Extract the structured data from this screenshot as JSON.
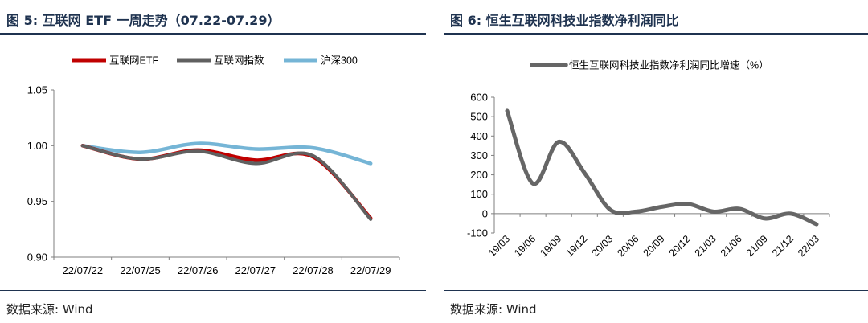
{
  "panels": [
    {
      "title": "图 5:  互联网 ETF 一周走势（07.22-07.29）",
      "source": "数据来源:  Wind"
    },
    {
      "title": "图 6:  恒生互联网科技业指数净利润同比",
      "source": "数据来源:  Wind"
    }
  ],
  "chart_data": [
    {
      "type": "line",
      "title": "",
      "xlabel": "",
      "ylabel": "",
      "categories": [
        "22/07/22",
        "22/07/25",
        "22/07/26",
        "22/07/27",
        "22/07/28",
        "22/07/29"
      ],
      "ylim": [
        0.9,
        1.05
      ],
      "yticks": [
        0.9,
        0.95,
        1.0,
        1.05
      ],
      "ytick_labels": [
        "0.90",
        "0.95",
        "1.00",
        "1.05"
      ],
      "grid": false,
      "legend_position": "top",
      "series": [
        {
          "name": "互联网ETF",
          "color": "#c00000",
          "values": [
            1.0,
            0.988,
            0.996,
            0.987,
            0.99,
            0.935
          ]
        },
        {
          "name": "互联网指数",
          "color": "#606060",
          "values": [
            1.0,
            0.988,
            0.995,
            0.984,
            0.991,
            0.934
          ]
        },
        {
          "name": "沪深300",
          "color": "#75b5d6",
          "values": [
            1.0,
            0.994,
            1.002,
            0.997,
            0.998,
            0.984
          ]
        }
      ]
    },
    {
      "type": "line",
      "title": "",
      "xlabel": "",
      "ylabel": "",
      "categories": [
        "19/03",
        "19/06",
        "19/09",
        "19/12",
        "20/03",
        "20/06",
        "20/09",
        "20/12",
        "21/03",
        "21/06",
        "21/09",
        "21/12",
        "22/03"
      ],
      "ylim": [
        -100,
        600
      ],
      "yticks": [
        -100,
        0,
        100,
        200,
        300,
        400,
        500,
        600
      ],
      "ytick_labels": [
        "-100",
        "0",
        "100",
        "200",
        "300",
        "400",
        "500",
        "600"
      ],
      "grid": false,
      "legend_position": "top",
      "series": [
        {
          "name": "恒生互联网科技业指数净利润同比增速（%）",
          "color": "#666666",
          "values": [
            530,
            155,
            370,
            210,
            20,
            10,
            35,
            50,
            10,
            25,
            -25,
            0,
            -55
          ]
        }
      ]
    }
  ]
}
